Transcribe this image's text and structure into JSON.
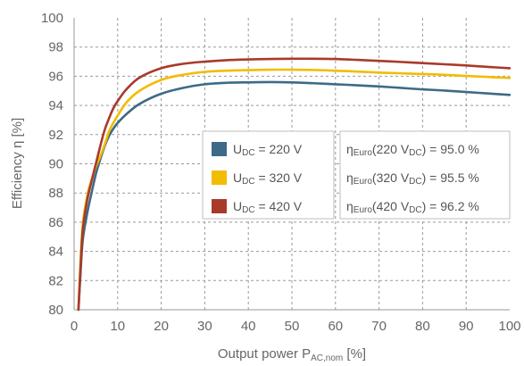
{
  "chart_data": {
    "type": "line",
    "xlabel": {
      "main": "Output power P",
      "sub": "AC,nom",
      "unit": " [%]"
    },
    "ylabel": {
      "main": "Efficiency η [%]"
    },
    "xlim": [
      0,
      100
    ],
    "ylim": [
      80,
      100
    ],
    "xticks": [
      "0",
      "10",
      "20",
      "30",
      "40",
      "50",
      "60",
      "70",
      "80",
      "90",
      "100"
    ],
    "yticks": [
      "80",
      "82",
      "84",
      "86",
      "88",
      "90",
      "92",
      "94",
      "96",
      "98",
      "100"
    ],
    "grid": true,
    "series": [
      {
        "name": "U_DC = 220 V",
        "label_main": "U",
        "label_sub": "DC",
        "label_rest": " = 220 V",
        "color": "#3d6a87",
        "euro_prefix": "η",
        "euro_sub": "Euro",
        "euro_paren_open": "(220 V",
        "euro_paren_sub": "DC",
        "euro_value": ") = 95.0 %",
        "x": [
          1,
          1.5,
          2,
          3,
          4,
          5,
          6,
          7,
          8,
          9,
          10,
          12,
          15,
          20,
          25,
          30,
          35,
          40,
          45,
          50,
          55,
          60,
          65,
          70,
          75,
          80,
          85,
          90,
          95,
          100
        ],
        "y": [
          80.0,
          82.6,
          84.8,
          86.6,
          88.0,
          89.3,
          90.3,
          91.2,
          91.9,
          92.4,
          92.8,
          93.4,
          94.1,
          94.8,
          95.2,
          95.45,
          95.55,
          95.58,
          95.6,
          95.58,
          95.52,
          95.45,
          95.38,
          95.3,
          95.2,
          95.1,
          95.02,
          94.92,
          94.82,
          94.72
        ]
      },
      {
        "name": "U_DC = 320 V",
        "label_main": "U",
        "label_sub": "DC",
        "label_rest": " = 320 V",
        "color": "#f2bc00",
        "euro_prefix": "η",
        "euro_sub": "Euro",
        "euro_paren_open": "(320 V",
        "euro_paren_sub": "DC",
        "euro_value": ") = 95.5 %",
        "x": [
          1,
          1.5,
          2,
          3,
          4,
          5,
          6,
          7,
          8,
          9,
          10,
          12,
          15,
          20,
          25,
          30,
          35,
          40,
          45,
          50,
          55,
          60,
          65,
          70,
          75,
          80,
          85,
          90,
          95,
          100
        ],
        "y": [
          80.0,
          83.5,
          85.9,
          87.8,
          88.9,
          89.8,
          90.5,
          91.3,
          92.2,
          92.8,
          93.3,
          94.2,
          95.0,
          95.75,
          96.1,
          96.3,
          96.38,
          96.42,
          96.45,
          96.45,
          96.43,
          96.38,
          96.32,
          96.25,
          96.2,
          96.15,
          96.1,
          96.02,
          95.95,
          95.88
        ]
      },
      {
        "name": "U_DC = 420 V",
        "label_main": "U",
        "label_sub": "DC",
        "label_rest": " = 420 V",
        "color": "#a93a2a",
        "euro_prefix": "η",
        "euro_sub": "Euro",
        "euro_paren_open": "(420 V",
        "euro_paren_sub": "DC",
        "euro_value": ") = 96.2 %",
        "x": [
          1,
          1.5,
          2,
          3,
          4,
          5,
          6,
          7,
          8,
          9,
          10,
          12,
          15,
          20,
          25,
          30,
          35,
          40,
          45,
          50,
          55,
          60,
          65,
          70,
          75,
          80,
          85,
          90,
          95,
          100
        ],
        "y": [
          80.0,
          83.0,
          85.5,
          87.5,
          88.8,
          90.0,
          91.2,
          92.3,
          93.1,
          93.8,
          94.3,
          95.1,
          95.9,
          96.55,
          96.85,
          97.0,
          97.1,
          97.15,
          97.18,
          97.2,
          97.2,
          97.18,
          97.12,
          97.05,
          96.98,
          96.9,
          96.82,
          96.74,
          96.64,
          96.55
        ]
      }
    ]
  }
}
